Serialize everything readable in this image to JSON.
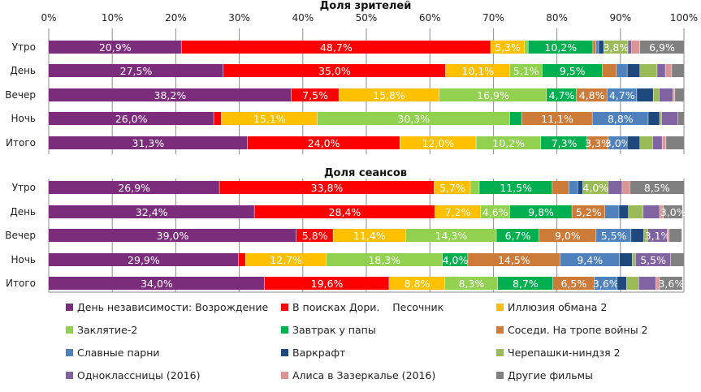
{
  "chart_data": [
    {
      "type": "bar",
      "stacked": "percent",
      "orientation": "horizontal",
      "title": "Доля зрителей",
      "categories": [
        "Утро",
        "День",
        "Вечер",
        "Ночь",
        "Итого"
      ],
      "xlim": [
        0,
        100
      ],
      "x_ticks": [
        "0%",
        "10%",
        "20%",
        "30%",
        "40%",
        "50%",
        "60%",
        "70%",
        "80%",
        "90%",
        "100%"
      ],
      "grid": true,
      "series": [
        {
          "name": "День независимости: Возрождение",
          "values": [
            20.9,
            27.5,
            38.2,
            26.0,
            31.3
          ]
        },
        {
          "name": "В поисках Дори.    Песочник",
          "values": [
            48.7,
            35.0,
            7.5,
            1.2,
            24.0
          ]
        },
        {
          "name": "Иллюзия обмана 2",
          "values": [
            5.3,
            10.1,
            15.8,
            15.1,
            12.0
          ]
        },
        {
          "name": "Заклятие-2",
          "values": [
            0.6,
            5.1,
            16.9,
            30.3,
            10.2
          ]
        },
        {
          "name": "Завтрак у папы",
          "values": [
            10.2,
            9.5,
            4.7,
            1.9,
            7.3
          ]
        },
        {
          "name": "Соседи. На тропе войны 2",
          "values": [
            0.5,
            2.2,
            4.8,
            11.1,
            3.3
          ]
        },
        {
          "name": "Славные парни",
          "values": [
            0.4,
            1.7,
            4.7,
            8.8,
            3.0
          ]
        },
        {
          "name": "Варкрафт",
          "values": [
            0.8,
            2.0,
            2.6,
            1.8,
            2.0
          ]
        },
        {
          "name": "Черепашки-ниндзя 2",
          "values": [
            3.8,
            2.7,
            0.9,
            0.3,
            2.0
          ]
        },
        {
          "name": "Одноклассницы (2016)",
          "values": [
            0.6,
            1.3,
            2.2,
            2.6,
            1.5
          ]
        },
        {
          "name": "Алиса в Зазеркалье (2016)",
          "values": [
            1.3,
            1.0,
            0.3,
            0.0,
            0.6
          ]
        },
        {
          "name": "Другие фильмы",
          "values": [
            6.9,
            1.9,
            1.4,
            0.9,
            2.8
          ]
        }
      ]
    },
    {
      "type": "bar",
      "stacked": "percent",
      "orientation": "horizontal",
      "title": "Доля сеансов",
      "categories": [
        "Утро",
        "День",
        "Вечер",
        "Ночь",
        "Итого"
      ],
      "xlim": [
        0,
        100
      ],
      "grid": true,
      "series": [
        {
          "name": "День независимости: Возрождение",
          "values": [
            26.9,
            32.4,
            39.0,
            29.9,
            34.0
          ]
        },
        {
          "name": "В поисках Дори.    Песочник",
          "values": [
            33.8,
            28.4,
            5.8,
            1.1,
            19.6
          ]
        },
        {
          "name": "Иллюзия обмана 2",
          "values": [
            5.7,
            7.2,
            11.4,
            12.7,
            8.8
          ]
        },
        {
          "name": "Заклятие-2",
          "values": [
            1.4,
            4.6,
            14.3,
            18.3,
            8.3
          ]
        },
        {
          "name": "Завтрак у папы",
          "values": [
            11.5,
            9.8,
            6.7,
            4.0,
            8.7
          ]
        },
        {
          "name": "Соседи. На тропе войны 2",
          "values": [
            2.6,
            5.2,
            9.0,
            14.5,
            6.5
          ]
        },
        {
          "name": "Славные парни",
          "values": [
            1.4,
            2.2,
            5.5,
            9.4,
            3.6
          ]
        },
        {
          "name": "Варкрафт",
          "values": [
            0.8,
            1.5,
            2.0,
            2.0,
            1.5
          ]
        },
        {
          "name": "Черепашки-ниндзя 2",
          "values": [
            4.0,
            2.3,
            0.6,
            0.5,
            1.9
          ]
        },
        {
          "name": "Одноклассницы (2016)",
          "values": [
            2.2,
            2.6,
            3.1,
            5.5,
            2.7
          ]
        },
        {
          "name": "Алиса в Зазеркалье (2016)",
          "values": [
            1.2,
            0.6,
            0.3,
            0.0,
            0.6
          ]
        },
        {
          "name": "Другие фильмы",
          "values": [
            8.5,
            3.0,
            2.0,
            2.1,
            3.6
          ]
        }
      ]
    }
  ],
  "colors": [
    "#7B2C7A",
    "#FF0000",
    "#FFC000",
    "#92D050",
    "#00B050",
    "#CD7B38",
    "#4F81BD",
    "#1F497D",
    "#9BBB59",
    "#8064A2",
    "#D99694",
    "#808080"
  ],
  "label_threshold_percent": 3,
  "legend": {
    "placement": "bottom",
    "columns": 3
  }
}
